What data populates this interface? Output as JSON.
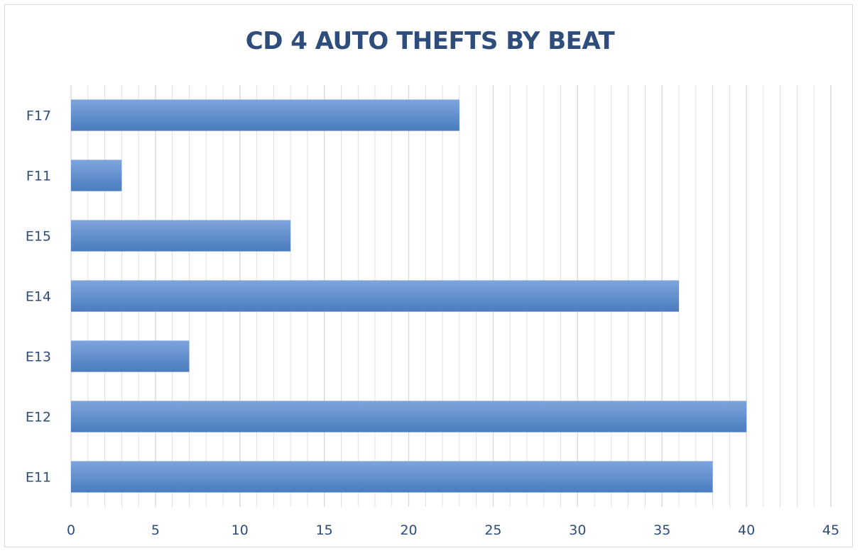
{
  "chart_data": {
    "type": "bar",
    "orientation": "horizontal",
    "title": "CD 4 AUTO THEFTS BY BEAT",
    "categories": [
      "E11",
      "E12",
      "E13",
      "E14",
      "E15",
      "F11",
      "F17"
    ],
    "values": [
      38,
      40,
      7,
      36,
      13,
      3,
      23
    ],
    "xlim": [
      0,
      45
    ],
    "x_ticks": [
      0,
      5,
      10,
      15,
      20,
      25,
      30,
      35,
      40,
      45
    ],
    "x_tick_labels": [
      "0",
      "5",
      "10",
      "15",
      "20",
      "25",
      "30",
      "35",
      "40",
      "45"
    ],
    "grid": "vertical",
    "legend": "none",
    "bar_color": "#4a7cc0",
    "bar_color_light": "#7ea5dc",
    "text_color": "#2e4d7b",
    "grid_color": "#d9d9d9"
  }
}
